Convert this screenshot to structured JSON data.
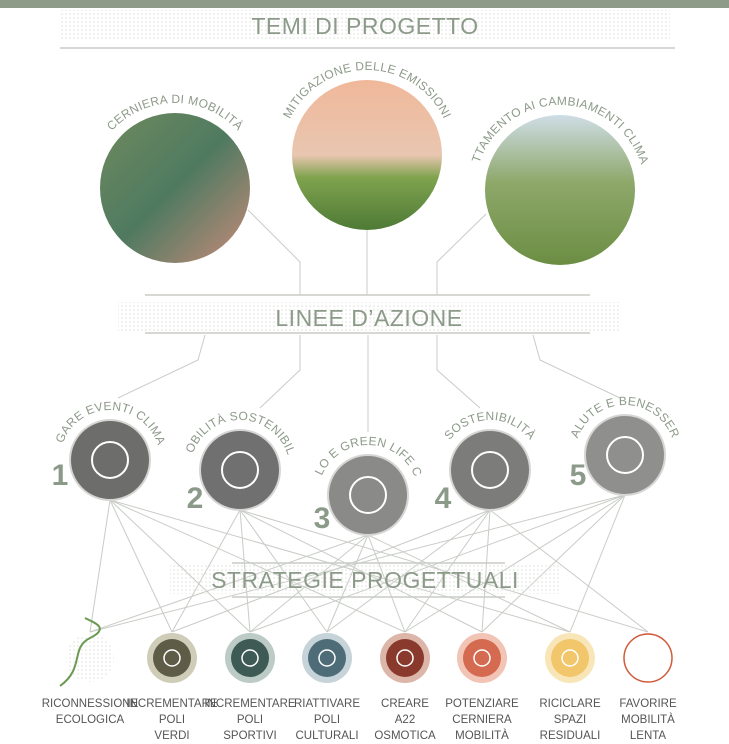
{
  "header": {
    "title": "TEMI DI PROGETTO"
  },
  "themes": [
    {
      "label": "CERNIERA DI MOBILITÀ"
    },
    {
      "label": "MITIGAZIONE DELLE EMISSIONI"
    },
    {
      "label": "ADATTAMENTO AI CAMBIAMENTI CLIMATICI"
    }
  ],
  "actions_title": "LINEE D’AZIONE",
  "actions": [
    {
      "number": "1",
      "label": "MITIGARE EVENTI CLIMATICI"
    },
    {
      "number": "2",
      "label": "MOBILITÀ SOSTENIBILE"
    },
    {
      "number": "3",
      "label": "RICICLO E GREEN LIFE CYCLE"
    },
    {
      "number": "4",
      "label": "SOSTENIBILITÀ"
    },
    {
      "number": "5",
      "label": "SALUTE E BENESSERE"
    }
  ],
  "strategies_title": "STRATEGIE PROGETTUALI",
  "strategies": [
    {
      "lines": [
        "RICONNESSIONE",
        "ECOLOGICA"
      ]
    },
    {
      "lines": [
        "INCREMENTARE",
        "POLI",
        "VERDI"
      ]
    },
    {
      "lines": [
        "INCREMENTARE",
        "POLI",
        "SPORTIVI"
      ]
    },
    {
      "lines": [
        "RIATTIVARE",
        "POLI",
        "CULTURALI"
      ]
    },
    {
      "lines": [
        "CREARE",
        "A22",
        "OSMOTICA"
      ]
    },
    {
      "lines": [
        "POTENZIARE",
        "CERNIERA",
        "MOBILITÀ"
      ]
    },
    {
      "lines": [
        "RICICLARE",
        "SPAZI",
        "RESIDUALI"
      ]
    },
    {
      "lines": [
        "FAVORIRE",
        "MOBILITÀ",
        "LENTA"
      ]
    }
  ]
}
